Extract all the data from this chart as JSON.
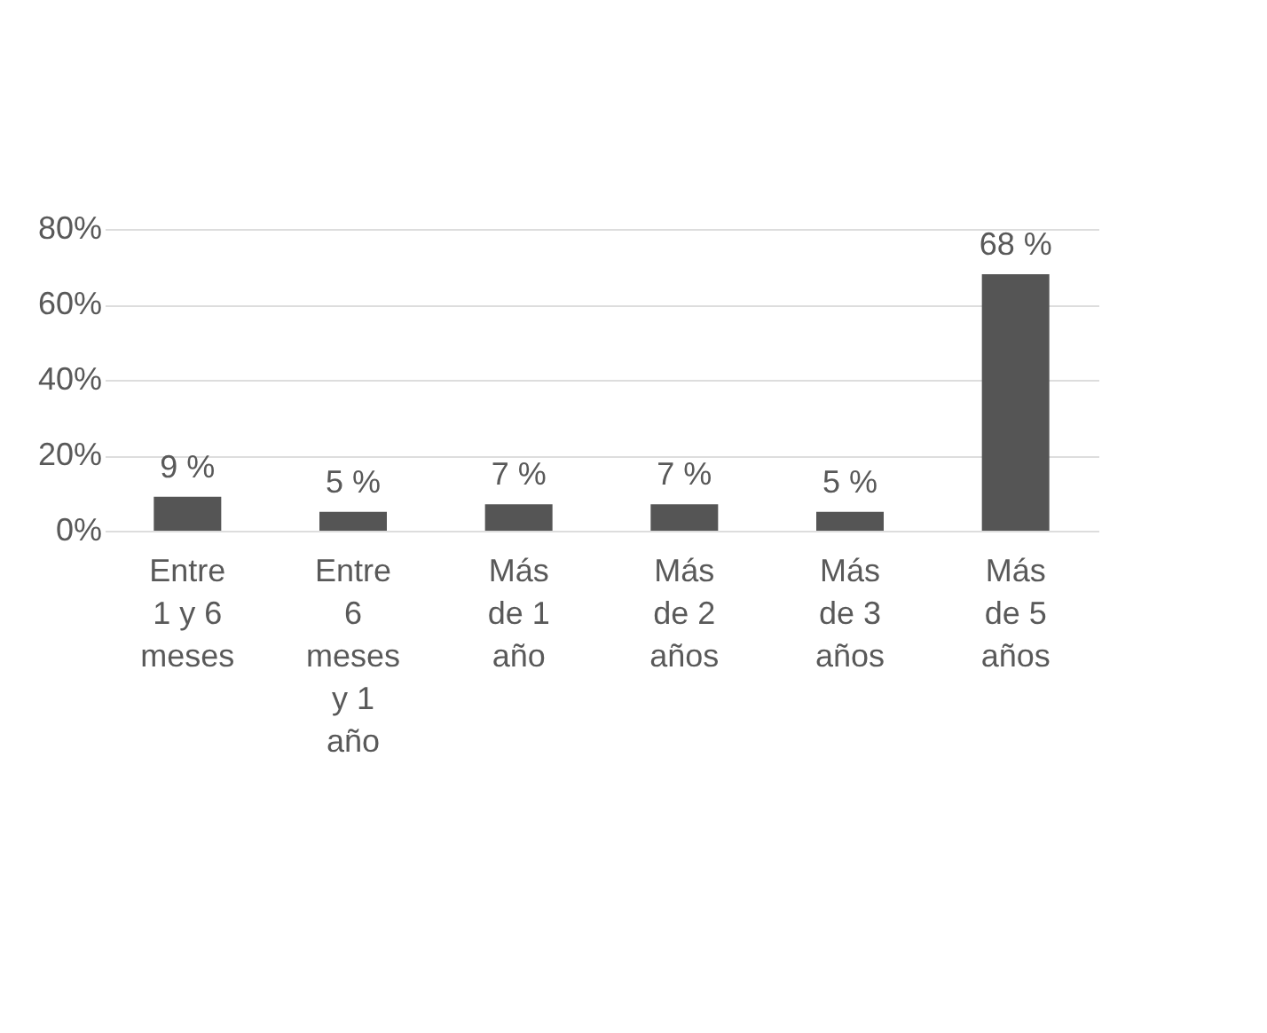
{
  "chart_data": {
    "type": "bar",
    "categories": [
      "Entre 1 y 6 meses",
      "Entre 6 meses y 1 año",
      "Más de 1 año",
      "Más de 2 años",
      "Más de 3 años",
      "Más de 5 años"
    ],
    "values": [
      9,
      5,
      7,
      7,
      5,
      68
    ],
    "value_labels": [
      "9 %",
      "5 %",
      "7 %",
      "7 %",
      "5 %",
      "68 %"
    ],
    "color": "#555555",
    "ylim": [
      0,
      80
    ],
    "yticks": [
      {
        "value": 0,
        "label": "0%"
      },
      {
        "value": 20,
        "label": "20%"
      },
      {
        "value": 40,
        "label": "40%"
      },
      {
        "value": 60,
        "label": "60%"
      },
      {
        "value": 80,
        "label": "80%"
      }
    ],
    "grid": "y"
  }
}
